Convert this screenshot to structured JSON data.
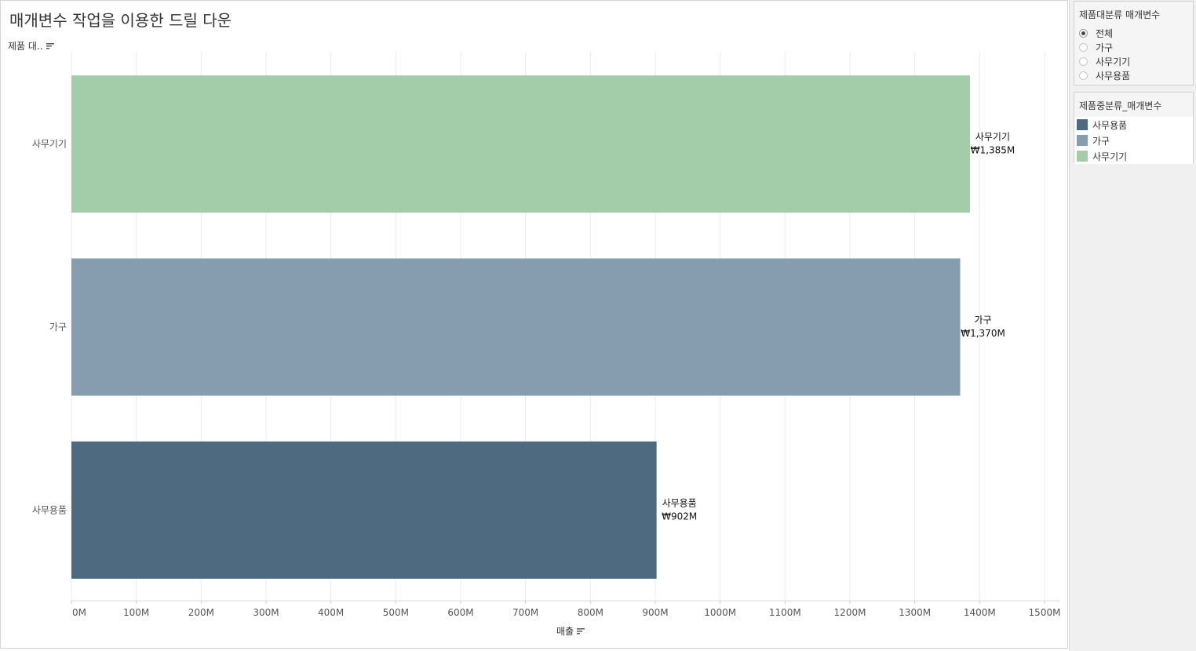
{
  "title": "매개변수 작업을 이용한 드릴 다운",
  "row_header": "제품 대..",
  "x_axis_title": "매출",
  "colors": {
    "sales_office": "#4e6a80",
    "furniture": "#869caf",
    "machines": "#a3cda8"
  },
  "chart_data": {
    "type": "bar",
    "orientation": "horizontal",
    "categories": [
      "사무기기",
      "가구",
      "사무용품"
    ],
    "values": [
      1385,
      1370,
      902
    ],
    "unit": "M",
    "data_labels": [
      {
        "name": "사무기기",
        "value": "₩1,385M"
      },
      {
        "name": "가구",
        "value": "₩1,370M"
      },
      {
        "name": "사무용품",
        "value": "₩902M"
      }
    ],
    "bar_colors": [
      "#a3cda8",
      "#869caf",
      "#4e6a80"
    ],
    "xlim": [
      0,
      1500
    ],
    "xticks": [
      "0M",
      "100M",
      "200M",
      "300M",
      "400M",
      "500M",
      "600M",
      "700M",
      "800M",
      "900M",
      "1000M",
      "1100M",
      "1200M",
      "1300M",
      "1400M",
      "1500M"
    ],
    "xlabel": "매출",
    "ylabel": "제품 대..",
    "grid": "vertical"
  },
  "filter_card": {
    "title": "제품대분류 매개변수",
    "options": [
      "전체",
      "가구",
      "사무기기",
      "사무용품"
    ],
    "selected": "전체"
  },
  "legend_card": {
    "title": "제품중분류_매개변수",
    "items": [
      {
        "label": "사무용품",
        "color": "#4e6a80"
      },
      {
        "label": "가구",
        "color": "#869caf"
      },
      {
        "label": "사무기기",
        "color": "#a3cda8"
      }
    ]
  }
}
